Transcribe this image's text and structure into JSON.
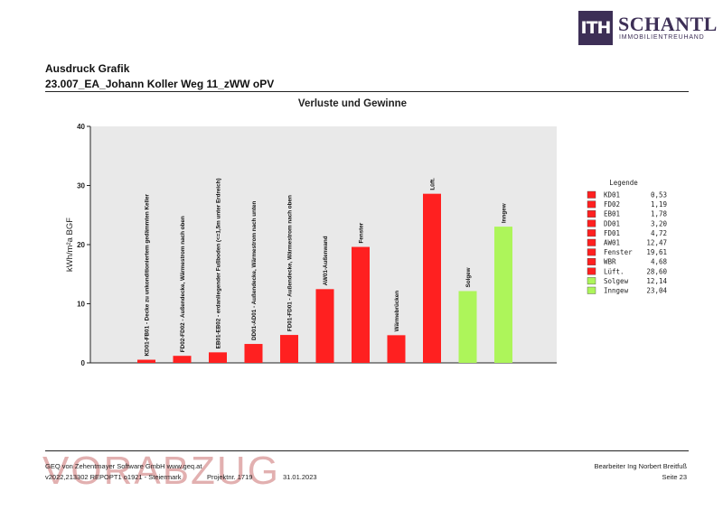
{
  "logo": {
    "mark": "ITH",
    "name": "SCHANTL",
    "subtitle": "IMMOBILIENTREUHAND"
  },
  "header": {
    "title": "Ausdruck Grafik",
    "subtitle": "23.007_EA_Johann Koller Weg 11_zWW oPV"
  },
  "chart_data": {
    "type": "bar",
    "title": "Verluste und Gewinne",
    "xlabel": "",
    "ylabel": "kWh/m²a BGF",
    "ylim": [
      0,
      40
    ],
    "yticks": [
      0,
      10,
      20,
      30,
      40
    ],
    "grid": false,
    "categories": [
      "KD01-FB01 - Decke zu unkonditioniertem gedämmten Keller",
      "FD02-FD02 - Außendecke, Wärmestrom nach oben",
      "EB01-EB02 - erdanliegender Fußboden (<=1,5m unter Erdreich)",
      "DD01-AD01 - Außendecke, Wärmestrom nach unten",
      "FD01-FD01 - Außendecke, Wärmestrom nach oben",
      "AW01-Außenwand",
      "Fenster",
      "Wärmebrücken",
      "Lüft.",
      "Solgew",
      "Inngew"
    ],
    "values": [
      0.53,
      1.19,
      1.78,
      3.2,
      4.72,
      12.47,
      19.61,
      4.68,
      28.6,
      12.14,
      23.04
    ],
    "colors": [
      "#ff2020",
      "#ff2020",
      "#ff2020",
      "#ff2020",
      "#ff2020",
      "#ff2020",
      "#ff2020",
      "#ff2020",
      "#ff2020",
      "#adf55a",
      "#adf55a"
    ],
    "legend": {
      "title": "Legende",
      "position": "right",
      "entries": [
        {
          "label": "KD01",
          "value": "0,53",
          "color": "#ff2020"
        },
        {
          "label": "FD02",
          "value": "1,19",
          "color": "#ff2020"
        },
        {
          "label": "EB01",
          "value": "1,78",
          "color": "#ff2020"
        },
        {
          "label": "DD01",
          "value": "3,20",
          "color": "#ff2020"
        },
        {
          "label": "FD01",
          "value": "4,72",
          "color": "#ff2020"
        },
        {
          "label": "AW01",
          "value": "12,47",
          "color": "#ff2020"
        },
        {
          "label": "Fenster",
          "value": "19,61",
          "color": "#ff2020"
        },
        {
          "label": "WBR",
          "value": "4,68",
          "color": "#ff2020"
        },
        {
          "label": "Lüft.",
          "value": "28,60",
          "color": "#ff2020"
        },
        {
          "label": "Solgew",
          "value": "12,14",
          "color": "#adf55a"
        },
        {
          "label": "Inngew",
          "value": "23,04",
          "color": "#adf55a"
        }
      ]
    }
  },
  "watermark": "VORABZUG",
  "footer": {
    "line1": "GEQ von Zehentmayer Software GmbH www.geq.at",
    "line2": "v2022,213302 REPOPT1 o1921 - Steiermark",
    "project": "Projektnr. 1719",
    "date": "31.01.2023",
    "author": "Bearbeiter Ing Norbert Breitfuß",
    "page": "Seite 23"
  }
}
